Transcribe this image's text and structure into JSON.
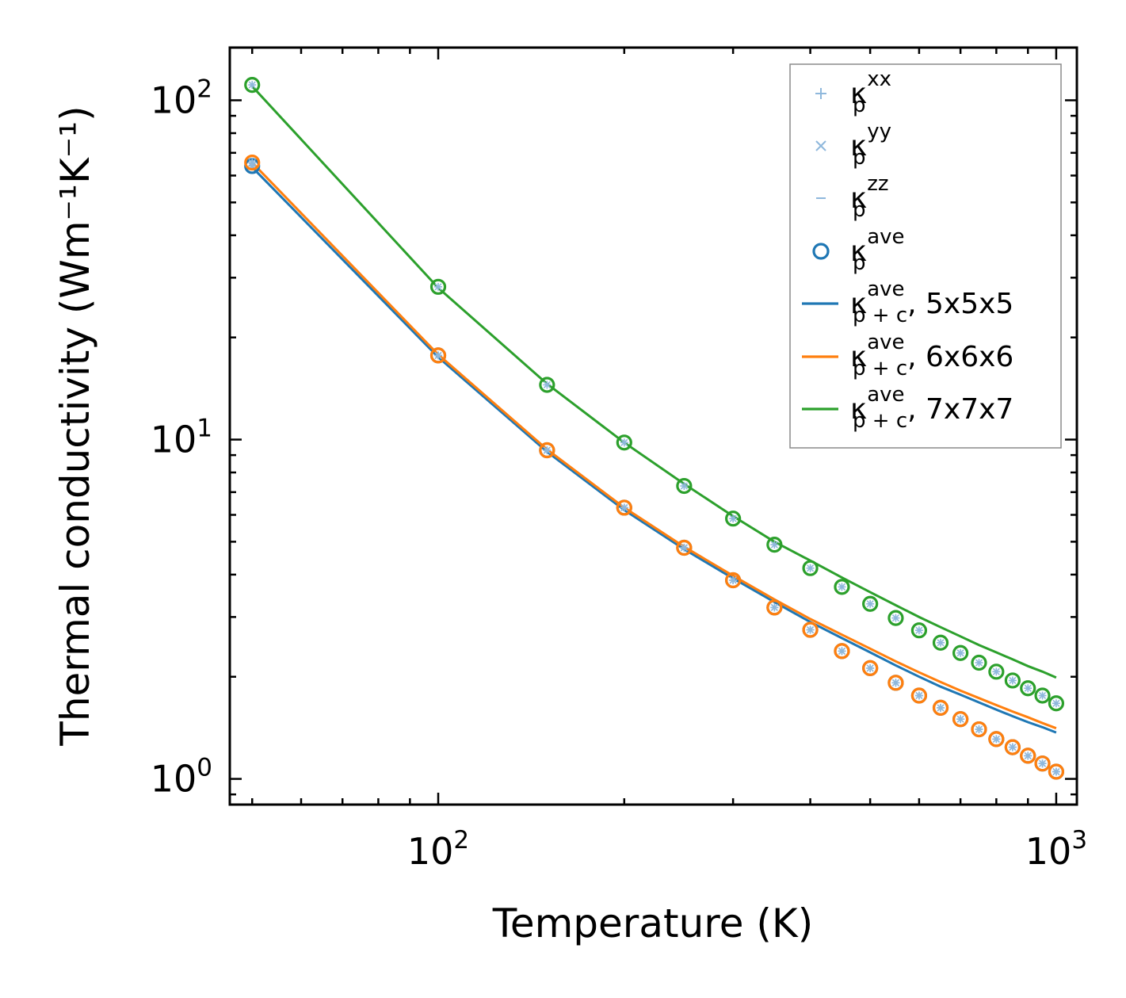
{
  "chart_data": {
    "type": "line",
    "x_scale": "log",
    "y_scale": "log",
    "xlabel": "Temperature (K)",
    "ylabel": "Thermal conductivity (Wm⁻¹K⁻¹)",
    "xlim": [
      46,
      1080
    ],
    "ylim": [
      0.84,
      143
    ],
    "x_ticks": [
      {
        "base": "10",
        "exp": "2",
        "value": 100
      },
      {
        "base": "10",
        "exp": "3",
        "value": 1000
      }
    ],
    "y_ticks": [
      {
        "base": "10",
        "exp": "0",
        "value": 1
      },
      {
        "base": "10",
        "exp": "1",
        "value": 10
      },
      {
        "base": "10",
        "exp": "2",
        "value": 100
      }
    ],
    "legend": {
      "placement": "upper-right",
      "entries": [
        {
          "kind": "plus",
          "sym": "κ",
          "sub": "p",
          "sup": "xx",
          "suffix": "",
          "color": "#8fb8dc"
        },
        {
          "kind": "x",
          "sym": "κ",
          "sub": "p",
          "sup": "yy",
          "suffix": "",
          "color": "#8fb8dc"
        },
        {
          "kind": "dash",
          "sym": "κ",
          "sub": "p",
          "sup": "zz",
          "suffix": "",
          "color": "#8fb8dc"
        },
        {
          "kind": "circle",
          "sym": "κ",
          "sub": "p",
          "sup": "ave",
          "suffix": "",
          "color": "#1f77b4"
        },
        {
          "kind": "line",
          "sym": "κ",
          "sub": "p + c",
          "sup": "ave",
          "suffix": ", 5x5x5",
          "color": "#1f77b4"
        },
        {
          "kind": "line",
          "sym": "κ",
          "sub": "p + c",
          "sup": "ave",
          "suffix": ", 6x6x6",
          "color": "#ff7f0e"
        },
        {
          "kind": "line",
          "sym": "κ",
          "sub": "p + c",
          "sup": "ave",
          "suffix": ", 7x7x7",
          "color": "#2ca02c"
        }
      ]
    },
    "x": [
      50,
      100,
      150,
      200,
      250,
      300,
      350,
      400,
      450,
      500,
      550,
      600,
      650,
      700,
      750,
      800,
      850,
      900,
      950,
      1000
    ],
    "series": [
      {
        "name": "κp+c ave, 5x5x5",
        "color": "#1f77b4",
        "line": [
          63.5,
          17.5,
          9.2,
          6.2,
          4.75,
          3.9,
          3.32,
          2.9,
          2.6,
          2.36,
          2.16,
          2.0,
          1.87,
          1.77,
          1.68,
          1.6,
          1.53,
          1.47,
          1.42,
          1.37
        ],
        "points": [
          64,
          17.7,
          9.3,
          6.3,
          4.8,
          3.85,
          3.2,
          2.75,
          2.38,
          2.12,
          1.92,
          1.76,
          1.62,
          1.5,
          1.4,
          1.31,
          1.24,
          1.17,
          1.11,
          1.05
        ]
      },
      {
        "name": "κp+c ave, 6x6x6",
        "color": "#ff7f0e",
        "line": [
          65.5,
          17.8,
          9.35,
          6.3,
          4.83,
          3.97,
          3.38,
          2.96,
          2.66,
          2.42,
          2.22,
          2.06,
          1.93,
          1.82,
          1.73,
          1.65,
          1.58,
          1.52,
          1.46,
          1.41
        ],
        "points": [
          65.5,
          17.7,
          9.3,
          6.3,
          4.8,
          3.85,
          3.2,
          2.75,
          2.38,
          2.12,
          1.92,
          1.76,
          1.62,
          1.5,
          1.4,
          1.31,
          1.24,
          1.17,
          1.11,
          1.05
        ]
      },
      {
        "name": "κp+c ave, 7x7x7",
        "color": "#2ca02c",
        "line": [
          110,
          28,
          14.6,
          9.8,
          7.4,
          5.95,
          5.0,
          4.4,
          3.92,
          3.55,
          3.25,
          3.0,
          2.8,
          2.63,
          2.48,
          2.36,
          2.25,
          2.15,
          2.07,
          1.99
        ],
        "points": [
          111,
          28.2,
          14.5,
          9.8,
          7.3,
          5.85,
          4.9,
          4.18,
          3.68,
          3.28,
          2.98,
          2.74,
          2.52,
          2.35,
          2.2,
          2.07,
          1.95,
          1.85,
          1.76,
          1.67
        ]
      }
    ]
  }
}
